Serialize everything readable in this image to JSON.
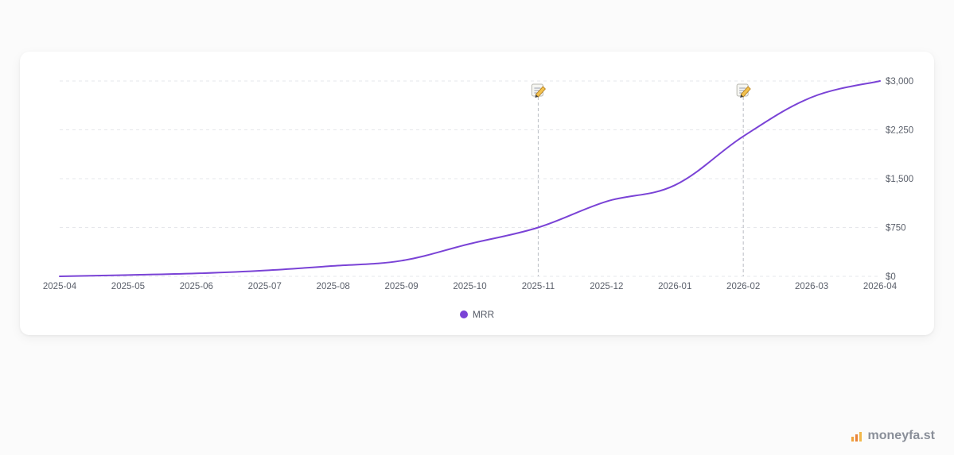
{
  "chart_data": {
    "type": "line",
    "categories": [
      "2025-04",
      "2025-05",
      "2025-06",
      "2025-07",
      "2025-08",
      "2025-09",
      "2025-10",
      "2025-11",
      "2025-12",
      "2026-01",
      "2026-02",
      "2026-03",
      "2026-04"
    ],
    "series": [
      {
        "name": "MRR",
        "values": [
          0,
          20,
          45,
          90,
          160,
          240,
          500,
          750,
          1150,
          1400,
          2150,
          2750,
          3000
        ]
      }
    ],
    "y_ticks": [
      0,
      750,
      1500,
      2250,
      3000
    ],
    "y_tick_labels": [
      "$0",
      "$750",
      "$1,500",
      "$2,250",
      "$3,000"
    ],
    "ylim": [
      0,
      3000
    ],
    "y_axis_position": "right",
    "grid": "horizontal dashed",
    "legend_position": "bottom-center",
    "annotations": [
      {
        "x": "2025-11",
        "icon": "memo-icon"
      },
      {
        "x": "2026-02",
        "icon": "memo-icon"
      }
    ],
    "title": "",
    "xlabel": "",
    "ylabel": ""
  },
  "colors": {
    "series_line": "#7a43d6",
    "grid": "#e6e7eb",
    "annotation_line": "#b9bcc3",
    "tick_text": "#5b606b",
    "brand_text": "#8a8f99"
  },
  "legend": {
    "label": "MRR",
    "marker_icon": "circle-dot-icon"
  },
  "brand": {
    "icon": "bar-chart-icon",
    "name": "moneyfa.st"
  }
}
